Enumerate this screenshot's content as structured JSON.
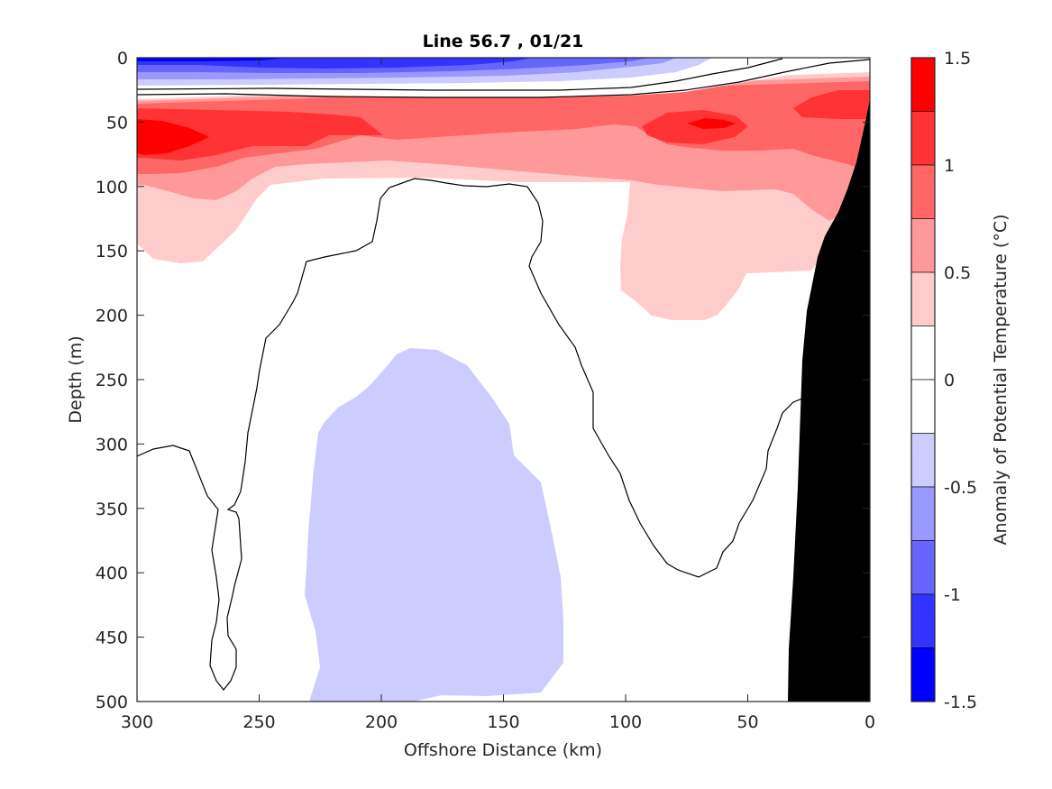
{
  "chart_data": {
    "type": "contour",
    "title": "Line 56.7 , 01/21",
    "xlabel": "Offshore Distance (km)",
    "ylabel": "Depth (m)",
    "xlim": [
      300,
      0
    ],
    "ylim": [
      500,
      0
    ],
    "x_direction": "reversed",
    "y_direction": "reversed",
    "x_ticks": [
      "300",
      "250",
      "200",
      "150",
      "100",
      "50",
      "0"
    ],
    "y_ticks": [
      "0",
      "50",
      "100",
      "150",
      "200",
      "250",
      "300",
      "350",
      "400",
      "450",
      "500"
    ],
    "colorbar": {
      "label": "Anomaly of Potential Temperature (°C)",
      "range": [
        -1.5,
        1.5
      ],
      "ticks": [
        "1.5",
        "1",
        "0.5",
        "0",
        "-0.5",
        "-1",
        "-1.5"
      ],
      "levels": [
        {
          "from": 1.25,
          "to": 1.5,
          "color": "#ff0000"
        },
        {
          "from": 1.0,
          "to": 1.25,
          "color": "#ff3333"
        },
        {
          "from": 0.75,
          "to": 1.0,
          "color": "#ff6666"
        },
        {
          "from": 0.5,
          "to": 0.75,
          "color": "#ff9999"
        },
        {
          "from": 0.25,
          "to": 0.5,
          "color": "#ffcccc"
        },
        {
          "from": 0.0,
          "to": 0.25,
          "color": "#ffffff"
        },
        {
          "from": -0.25,
          "to": 0.0,
          "color": "#ffffff"
        },
        {
          "from": -0.5,
          "to": -0.25,
          "color": "#ccccff"
        },
        {
          "from": -0.75,
          "to": -0.5,
          "color": "#9999ff"
        },
        {
          "from": -1.0,
          "to": -0.75,
          "color": "#6666ff"
        },
        {
          "from": -1.25,
          "to": -1.0,
          "color": "#3333ff"
        },
        {
          "from": -1.5,
          "to": -1.25,
          "color": "#0000ff"
        }
      ]
    },
    "features": [
      {
        "kind": "cold-anomaly-surface",
        "value_range": [
          -1.25,
          -0.25
        ],
        "x_range_km": [
          300,
          35
        ],
        "depth_range_m": [
          0,
          25
        ]
      },
      {
        "kind": "warm-core-subsurface",
        "max_value": 1.5,
        "x_km": 280,
        "depth_m": 60
      },
      {
        "kind": "warm-core-nearshore",
        "max_value": 1.25,
        "x_km": 65,
        "depth_m": 50
      },
      {
        "kind": "cold-anomaly-deep",
        "value_range": [
          -0.5,
          -0.25
        ],
        "x_range_km": [
          231,
          125
        ],
        "depth_range_m": [
          225,
          500
        ]
      },
      {
        "kind": "continental-slope-bathymetry",
        "x_range_km": [
          33,
          0
        ],
        "depth_range_m": [
          35,
          500
        ]
      }
    ]
  }
}
